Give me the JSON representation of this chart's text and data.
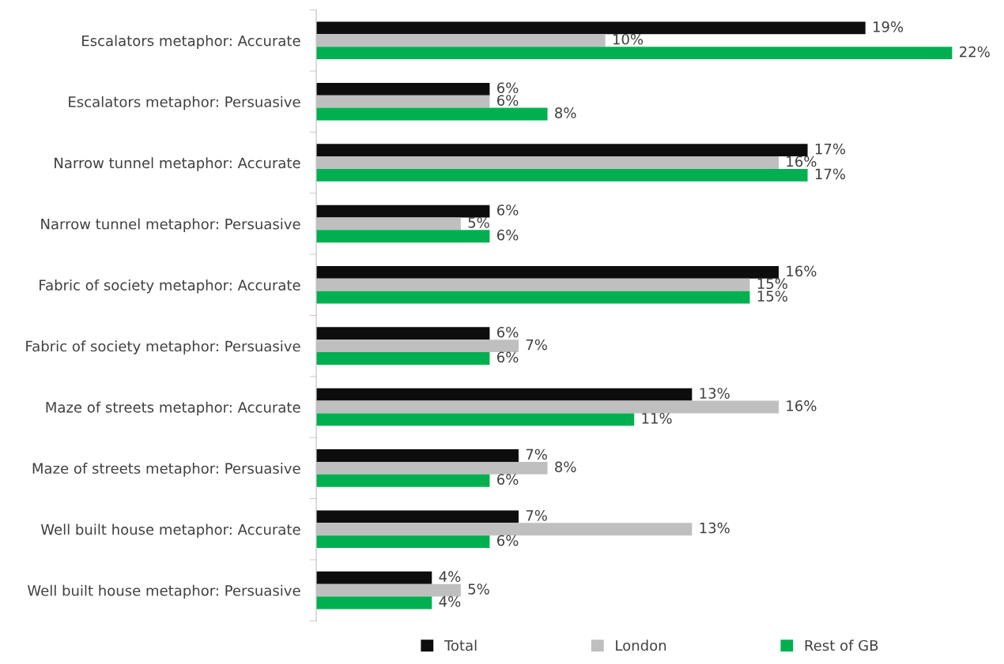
{
  "chart_data": {
    "type": "bar",
    "orientation": "horizontal",
    "categories": [
      "Escalators metaphor: Accurate",
      "Escalators metaphor: Persuasive",
      "Narrow tunnel metaphor: Accurate",
      "Narrow tunnel metaphor: Persuasive",
      "Fabric of society metaphor: Accurate",
      "Fabric of society metaphor: Persuasive",
      "Maze of streets metaphor: Accurate",
      "Maze of streets metaphor: Persuasive",
      "Well built house metaphor: Accurate",
      "Well built house metaphor: Persuasive"
    ],
    "series": [
      {
        "name": "Total",
        "color": "#0d0d0d",
        "values": [
          19,
          6,
          17,
          6,
          16,
          6,
          13,
          7,
          7,
          4
        ],
        "value_labels": [
          "19%",
          "6%",
          "17%",
          "6%",
          "16%",
          "6%",
          "13%",
          "7%",
          "7%",
          "4%"
        ]
      },
      {
        "name": "London",
        "color": "#bfbfbf",
        "values": [
          10,
          6,
          16,
          5,
          15,
          7,
          16,
          8,
          13,
          5
        ],
        "value_labels": [
          "10%",
          "6%",
          "16%",
          "5%",
          "15%",
          "7%",
          "16%",
          "8%",
          "13%",
          "5%"
        ]
      },
      {
        "name": "Rest of GB",
        "color": "#00b050",
        "values": [
          22,
          8,
          17,
          6,
          15,
          6,
          11,
          6,
          6,
          4
        ],
        "value_labels": [
          "22%",
          "8%",
          "17%",
          "6%",
          "15%",
          "6%",
          "11%",
          "6%",
          "6%",
          "4%"
        ]
      }
    ],
    "legend": "bottom",
    "grid": false
  }
}
